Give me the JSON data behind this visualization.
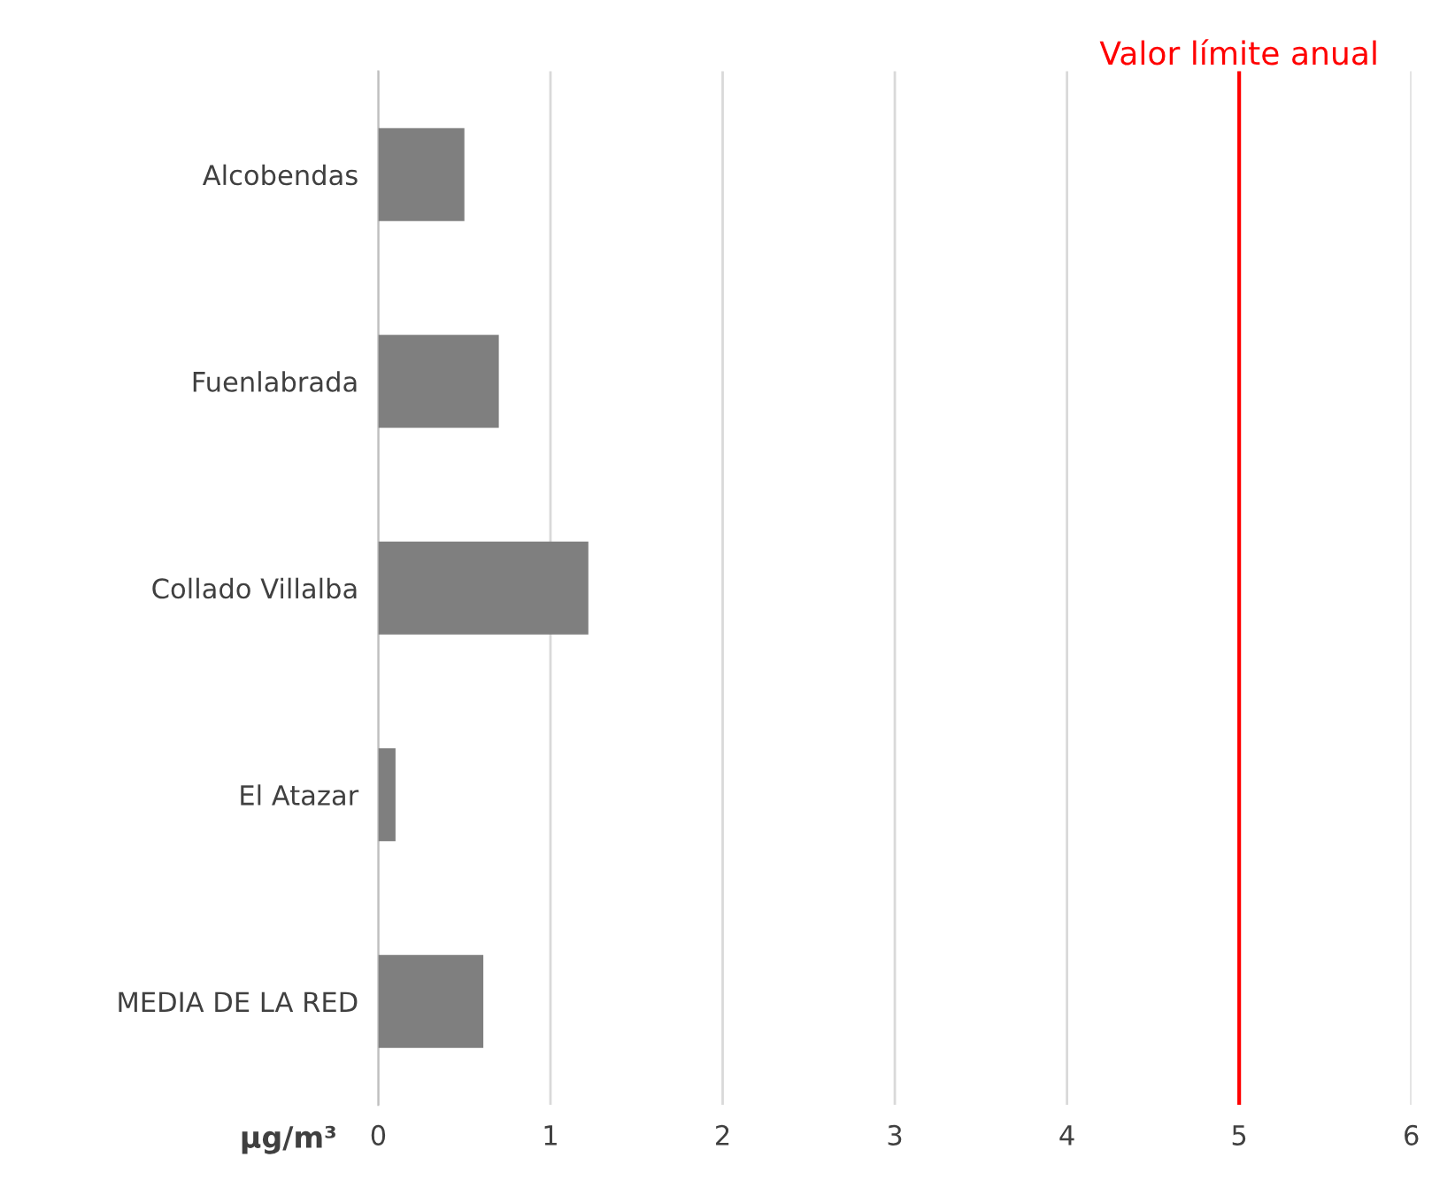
{
  "chart_data": {
    "type": "bar",
    "orientation": "horizontal",
    "categories": [
      "Alcobendas",
      "Fuenlabrada",
      "Collado Villalba",
      "El Atazar",
      "MEDIA DE LA RED"
    ],
    "values": [
      0.5,
      0.7,
      1.22,
      0.1,
      0.61
    ],
    "color": "#7f7f7f",
    "xlim": [
      0,
      6
    ],
    "xticks": [
      0,
      1,
      2,
      3,
      4,
      5,
      6
    ],
    "xlabel": "µg/m³",
    "grid": "x",
    "ref_lines": [
      {
        "axis": "x",
        "value": 5,
        "label": "Valor límite anual",
        "color": "#ff0000"
      }
    ]
  }
}
